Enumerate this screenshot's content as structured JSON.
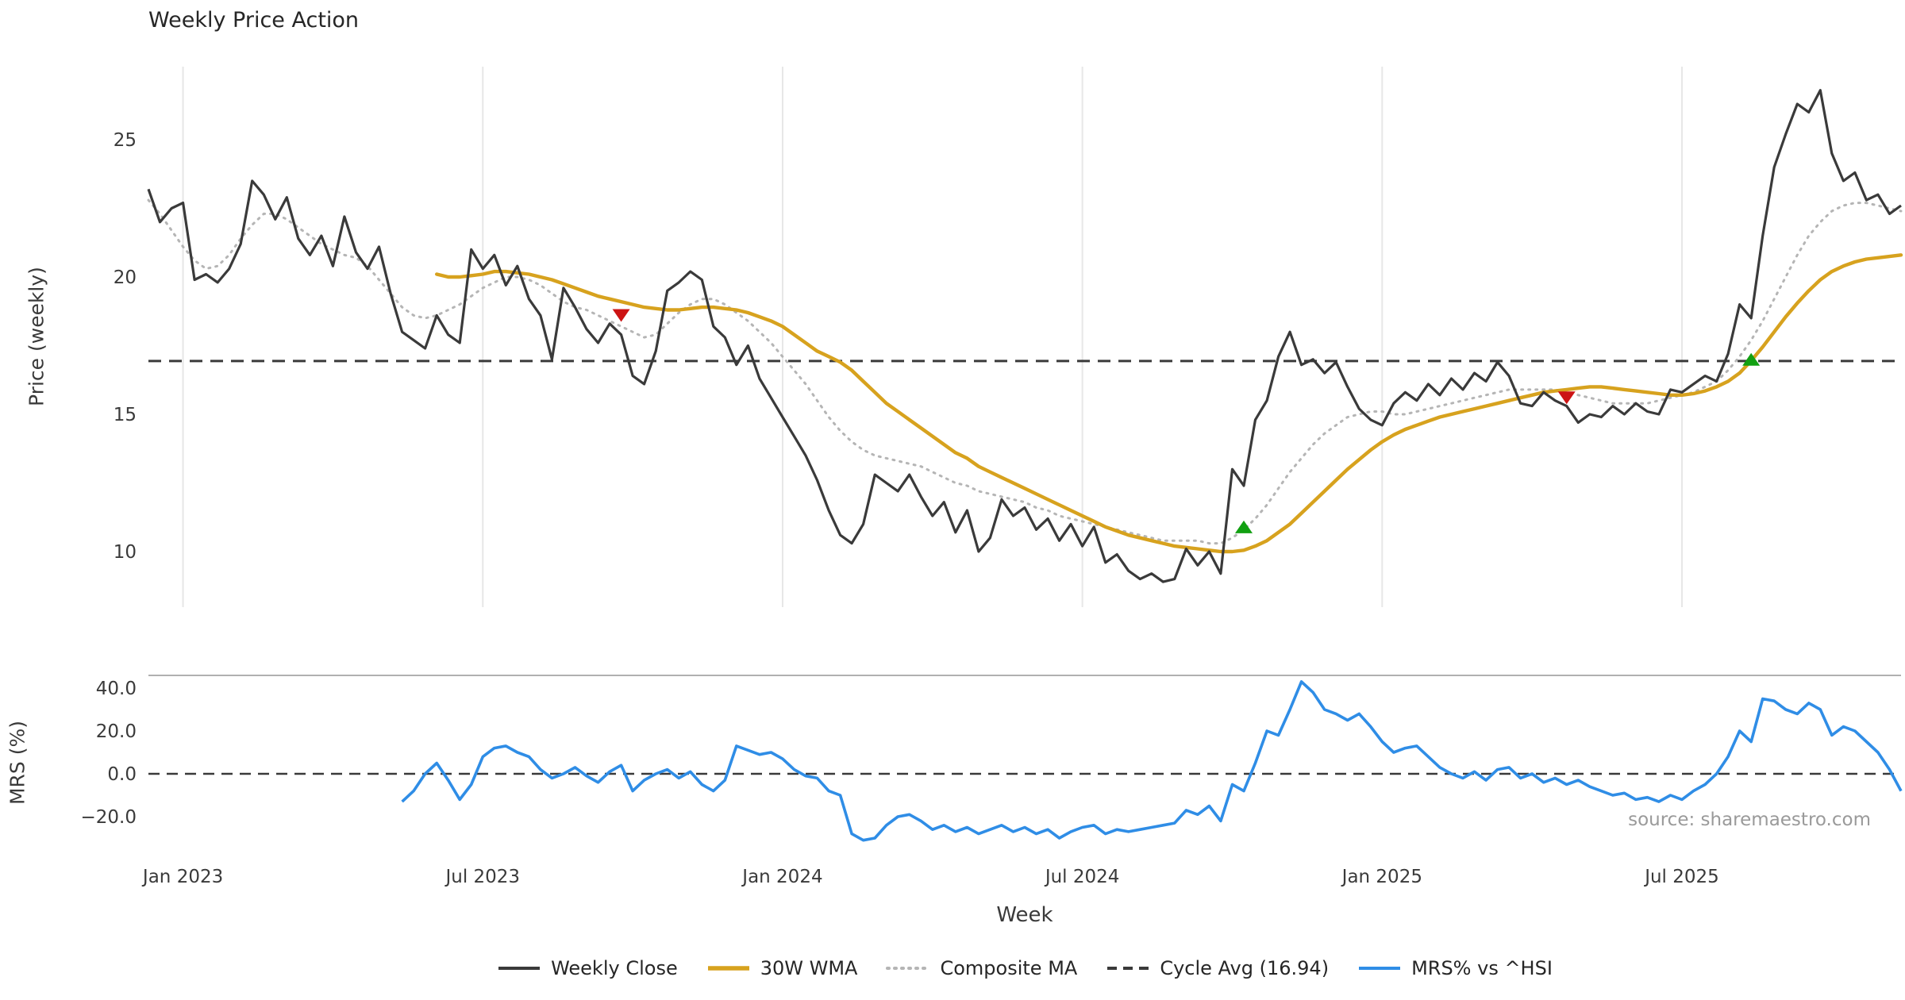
{
  "title": "Weekly Price Action",
  "xlabel": "Week",
  "source": "source: sharemaestro.com",
  "price_panel": {
    "ylabel": "Price (weekly)",
    "yticks": [
      {
        "label": "25",
        "value": 25
      },
      {
        "label": "20",
        "value": 20
      },
      {
        "label": "15",
        "value": 15
      },
      {
        "label": "10",
        "value": 10
      }
    ]
  },
  "mrs_panel": {
    "ylabel": "MRS (%)",
    "yticks": [
      {
        "label": "40.0",
        "value": 40
      },
      {
        "label": "20.0",
        "value": 20
      },
      {
        "label": "0.0",
        "value": 0
      },
      {
        "label": "−20.0",
        "value": -20
      }
    ]
  },
  "colors": {
    "weekly_close": "#3a3a3a",
    "wma30": "#d7a21e",
    "composite_ma": "#b5b5b5",
    "cycle_avg": "#3a3a3a",
    "mrs": "#2f8de6",
    "buy_marker": "#12a012",
    "sell_marker": "#cc1414",
    "gridline": "#e7e7e7",
    "spine": "#b0b0b0",
    "tick_text": "#3a3a3a"
  },
  "legend": [
    {
      "label": "Weekly Close",
      "series": "weekly_close",
      "style": "solid"
    },
    {
      "label": "30W WMA",
      "series": "wma30",
      "style": "solid"
    },
    {
      "label": "Composite MA",
      "series": "composite_ma",
      "style": "dotted"
    },
    {
      "label": "Cycle Avg (16.94)",
      "series": "cycle_avg",
      "style": "dashed"
    },
    {
      "label": "MRS% vs ^HSI",
      "series": "mrs",
      "style": "solid"
    }
  ],
  "chart_data": {
    "type": "line",
    "x_unit": "weekly",
    "start_week": "2022-12-12",
    "weeks_total": 153,
    "cycle_avg": 16.94,
    "price_ylim": [
      8.0,
      27.7
    ],
    "mrs_ylim": [
      -35.5,
      45.9
    ],
    "xticks": [
      {
        "label": "Jan 2023",
        "week": 3
      },
      {
        "label": "Jul 2023",
        "week": 29
      },
      {
        "label": "Jan 2024",
        "week": 55
      },
      {
        "label": "Jul 2024",
        "week": 81
      },
      {
        "label": "Jan 2025",
        "week": 107
      },
      {
        "label": "Jul 2025",
        "week": 133
      }
    ],
    "series": {
      "weekly_close": {
        "name": "Weekly Close",
        "start_week": 0,
        "values": [
          23.2,
          22.0,
          22.5,
          22.7,
          19.9,
          20.1,
          19.8,
          20.3,
          21.2,
          23.5,
          23.0,
          22.1,
          22.9,
          21.4,
          20.8,
          21.5,
          20.4,
          22.2,
          20.9,
          20.3,
          21.1,
          19.4,
          18.0,
          17.7,
          17.4,
          18.6,
          17.9,
          17.6,
          21.0,
          20.3,
          20.8,
          19.7,
          20.4,
          19.2,
          18.6,
          17.0,
          19.6,
          18.9,
          18.1,
          17.6,
          18.3,
          17.9,
          16.4,
          16.1,
          17.3,
          19.5,
          19.8,
          20.2,
          19.9,
          18.2,
          17.8,
          16.8,
          17.5,
          16.3,
          15.6,
          14.9,
          14.2,
          13.5,
          12.6,
          11.5,
          10.6,
          10.3,
          11.0,
          12.8,
          12.5,
          12.2,
          12.8,
          12.0,
          11.3,
          11.8,
          10.7,
          11.5,
          10.0,
          10.5,
          11.9,
          11.3,
          11.6,
          10.8,
          11.2,
          10.4,
          11.0,
          10.2,
          10.9,
          9.6,
          9.9,
          9.3,
          9.0,
          9.2,
          8.9,
          9.0,
          10.1,
          9.5,
          10.0,
          9.2,
          13.0,
          12.4,
          14.8,
          15.5,
          17.1,
          18.0,
          16.8,
          17.0,
          16.5,
          16.9,
          16.0,
          15.2,
          14.8,
          14.6,
          15.4,
          15.8,
          15.5,
          16.1,
          15.7,
          16.3,
          15.9,
          16.5,
          16.2,
          16.9,
          16.4,
          15.4,
          15.3,
          15.8,
          15.5,
          15.3,
          14.7,
          15.0,
          14.9,
          15.3,
          15.0,
          15.4,
          15.1,
          15.0,
          15.9,
          15.8,
          16.1,
          16.4,
          16.2,
          17.2,
          19.0,
          18.5,
          21.5,
          24.0,
          25.2,
          26.3,
          26.0,
          26.8,
          24.5,
          23.5,
          23.8,
          22.8,
          23.0,
          22.3,
          22.6
        ]
      },
      "wma30": {
        "name": "30W WMA",
        "start_week": 25,
        "values": [
          20.1,
          20.0,
          20.0,
          20.05,
          20.1,
          20.2,
          20.2,
          20.15,
          20.1,
          20.0,
          19.9,
          19.75,
          19.6,
          19.45,
          19.3,
          19.2,
          19.1,
          19.0,
          18.9,
          18.85,
          18.8,
          18.8,
          18.85,
          18.9,
          18.9,
          18.85,
          18.8,
          18.7,
          18.55,
          18.4,
          18.2,
          17.9,
          17.6,
          17.3,
          17.1,
          16.9,
          16.6,
          16.2,
          15.8,
          15.4,
          15.1,
          14.8,
          14.5,
          14.2,
          13.9,
          13.6,
          13.4,
          13.1,
          12.9,
          12.7,
          12.5,
          12.3,
          12.1,
          11.9,
          11.7,
          11.5,
          11.3,
          11.1,
          10.9,
          10.75,
          10.6,
          10.5,
          10.4,
          10.3,
          10.2,
          10.15,
          10.1,
          10.05,
          10.0,
          10.0,
          10.05,
          10.2,
          10.4,
          10.7,
          11.0,
          11.4,
          11.8,
          12.2,
          12.6,
          13.0,
          13.35,
          13.7,
          14.0,
          14.25,
          14.45,
          14.6,
          14.75,
          14.9,
          15.0,
          15.1,
          15.2,
          15.3,
          15.4,
          15.5,
          15.6,
          15.7,
          15.8,
          15.85,
          15.9,
          15.95,
          16.0,
          16.0,
          15.95,
          15.9,
          15.85,
          15.8,
          15.75,
          15.7,
          15.7,
          15.75,
          15.85,
          16.0,
          16.2,
          16.5,
          16.95,
          17.45,
          18.0,
          18.55,
          19.05,
          19.5,
          19.9,
          20.2,
          20.4,
          20.55,
          20.65,
          20.7,
          20.75,
          20.8
        ]
      },
      "composite_ma": {
        "name": "Composite MA",
        "start_week": 0,
        "values": [
          22.8,
          22.3,
          21.7,
          21.1,
          20.6,
          20.3,
          20.4,
          20.8,
          21.4,
          21.9,
          22.3,
          22.3,
          22.1,
          21.8,
          21.5,
          21.2,
          21.0,
          20.8,
          20.7,
          20.4,
          19.9,
          19.4,
          18.9,
          18.6,
          18.5,
          18.6,
          18.8,
          19.0,
          19.3,
          19.6,
          19.8,
          20.0,
          20.0,
          19.9,
          19.7,
          19.4,
          19.1,
          18.9,
          18.8,
          18.6,
          18.4,
          18.2,
          18.0,
          17.8,
          17.9,
          18.3,
          18.7,
          19.0,
          19.2,
          19.2,
          19.0,
          18.7,
          18.4,
          18.0,
          17.6,
          17.1,
          16.6,
          16.1,
          15.5,
          14.9,
          14.4,
          14.0,
          13.7,
          13.5,
          13.4,
          13.3,
          13.2,
          13.1,
          12.9,
          12.7,
          12.5,
          12.4,
          12.2,
          12.1,
          12.0,
          11.9,
          11.8,
          11.6,
          11.5,
          11.3,
          11.2,
          11.1,
          11.0,
          10.9,
          10.8,
          10.7,
          10.6,
          10.5,
          10.4,
          10.4,
          10.4,
          10.4,
          10.3,
          10.3,
          10.5,
          10.8,
          11.2,
          11.7,
          12.3,
          12.9,
          13.4,
          13.9,
          14.3,
          14.6,
          14.9,
          15.0,
          15.1,
          15.1,
          15.0,
          15.0,
          15.1,
          15.2,
          15.3,
          15.4,
          15.5,
          15.6,
          15.7,
          15.8,
          15.9,
          15.9,
          15.9,
          15.9,
          15.9,
          15.8,
          15.7,
          15.6,
          15.5,
          15.4,
          15.4,
          15.4,
          15.4,
          15.5,
          15.6,
          15.7,
          15.8,
          16.0,
          16.2,
          16.6,
          17.1,
          17.7,
          18.4,
          19.2,
          20.0,
          20.8,
          21.5,
          22.0,
          22.4,
          22.6,
          22.7,
          22.7,
          22.6,
          22.5,
          22.4
        ]
      },
      "mrs": {
        "name": "MRS% vs ^HSI",
        "start_week": 22,
        "values": [
          -13,
          -8,
          0,
          5,
          -3,
          -12,
          -5,
          8,
          12,
          13,
          10,
          8,
          2,
          -2,
          0,
          3,
          -1,
          -4,
          1,
          4,
          -8,
          -3,
          0,
          2,
          -2,
          1,
          -5,
          -8,
          -3,
          13,
          11,
          9,
          10,
          7,
          2,
          -1,
          -2,
          -8,
          -10,
          -28,
          -31,
          -30,
          -24,
          -20,
          -19,
          -22,
          -26,
          -24,
          -27,
          -25,
          -28,
          -26,
          -24,
          -27,
          -25,
          -28,
          -26,
          -30,
          -27,
          -25,
          -24,
          -28,
          -26,
          -27,
          -26,
          -25,
          -24,
          -23,
          -17,
          -19,
          -15,
          -22,
          -5,
          -8,
          5,
          20,
          18,
          30,
          43,
          38,
          30,
          28,
          25,
          28,
          22,
          15,
          10,
          12,
          13,
          8,
          3,
          0,
          -2,
          1,
          -3,
          2,
          3,
          -2,
          0,
          -4,
          -2,
          -5,
          -3,
          -6,
          -8,
          -10,
          -9,
          -12,
          -11,
          -13,
          -10,
          -12,
          -8,
          -5,
          0,
          8,
          20,
          15,
          35,
          34,
          30,
          28,
          33,
          30,
          18,
          22,
          20,
          15,
          10,
          2,
          -8
        ]
      }
    },
    "markers": [
      {
        "type": "sell",
        "week": 41,
        "price": 18.6
      },
      {
        "type": "buy",
        "week": 95,
        "price": 10.9
      },
      {
        "type": "sell",
        "week": 123,
        "price": 15.6
      },
      {
        "type": "buy",
        "week": 139,
        "price": 17.0
      }
    ]
  }
}
